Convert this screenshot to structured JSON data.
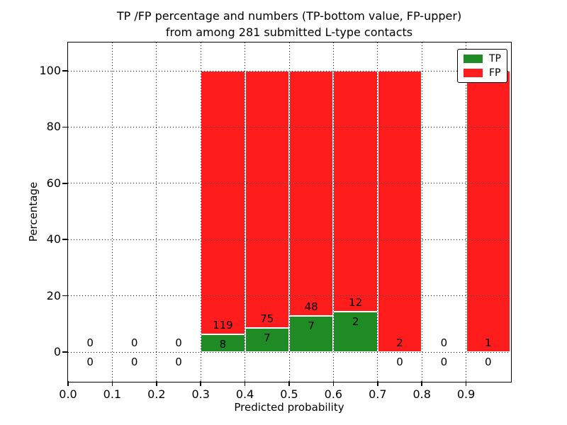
{
  "chart_data": {
    "type": "bar",
    "stacked": true,
    "value_mode": "bars show percentage of bin (TP+FP normalized to 100%), labels show raw counts",
    "title_line1": "TP /FP percentage and numbers (TP-bottom value, FP-upper)",
    "title_line2": "from among 281 submitted L-type contacts",
    "xlabel": "Predicted probability",
    "ylabel": "Percentage",
    "xlim": [
      0.0,
      1.0
    ],
    "ylim": [
      -10.5,
      110.5
    ],
    "grid": "dotted",
    "x_ticks": [
      {
        "value": 0.0,
        "label": "0.0"
      },
      {
        "value": 0.1,
        "label": "0.1"
      },
      {
        "value": 0.2,
        "label": "0.2"
      },
      {
        "value": 0.3,
        "label": "0.3"
      },
      {
        "value": 0.4,
        "label": "0.4"
      },
      {
        "value": 0.5,
        "label": "0.5"
      },
      {
        "value": 0.6,
        "label": "0.6"
      },
      {
        "value": 0.7,
        "label": "0.7"
      },
      {
        "value": 0.8,
        "label": "0.8"
      },
      {
        "value": 0.9,
        "label": "0.9"
      }
    ],
    "y_ticks": [
      {
        "value": 0,
        "label": "0"
      },
      {
        "value": 20,
        "label": "20"
      },
      {
        "value": 40,
        "label": "40"
      },
      {
        "value": 60,
        "label": "60"
      },
      {
        "value": 80,
        "label": "80"
      },
      {
        "value": 100,
        "label": "100"
      }
    ],
    "bins": [
      {
        "x0": 0.0,
        "x1": 0.1,
        "tp": 0,
        "fp": 0,
        "tp_pct": 0,
        "fp_pct": 0
      },
      {
        "x0": 0.1,
        "x1": 0.2,
        "tp": 0,
        "fp": 0,
        "tp_pct": 0,
        "fp_pct": 0
      },
      {
        "x0": 0.2,
        "x1": 0.3,
        "tp": 0,
        "fp": 0,
        "tp_pct": 0,
        "fp_pct": 0
      },
      {
        "x0": 0.3,
        "x1": 0.4,
        "tp": 8,
        "fp": 119,
        "tp_pct": 6.3,
        "fp_pct": 93.7
      },
      {
        "x0": 0.4,
        "x1": 0.5,
        "tp": 7,
        "fp": 75,
        "tp_pct": 8.5,
        "fp_pct": 91.5
      },
      {
        "x0": 0.5,
        "x1": 0.6,
        "tp": 7,
        "fp": 48,
        "tp_pct": 12.7,
        "fp_pct": 87.3
      },
      {
        "x0": 0.6,
        "x1": 0.7,
        "tp": 2,
        "fp": 12,
        "tp_pct": 14.3,
        "fp_pct": 85.7
      },
      {
        "x0": 0.7,
        "x1": 0.8,
        "tp": 0,
        "fp": 2,
        "tp_pct": 0,
        "fp_pct": 100
      },
      {
        "x0": 0.8,
        "x1": 0.9,
        "tp": 0,
        "fp": 0,
        "tp_pct": 0,
        "fp_pct": 0
      },
      {
        "x0": 0.9,
        "x1": 1.0,
        "tp": 0,
        "fp": 1,
        "tp_pct": 0,
        "fp_pct": 100
      }
    ],
    "legend": {
      "position": "upper right",
      "items": [
        {
          "label": "TP",
          "color": "#1f8b24"
        },
        {
          "label": "FP",
          "color": "#ff1c1c"
        }
      ]
    },
    "colors": {
      "tp": "#1f8b24",
      "fp": "#ff1c1c",
      "grid": "#000000",
      "background": "#ffffff"
    }
  }
}
